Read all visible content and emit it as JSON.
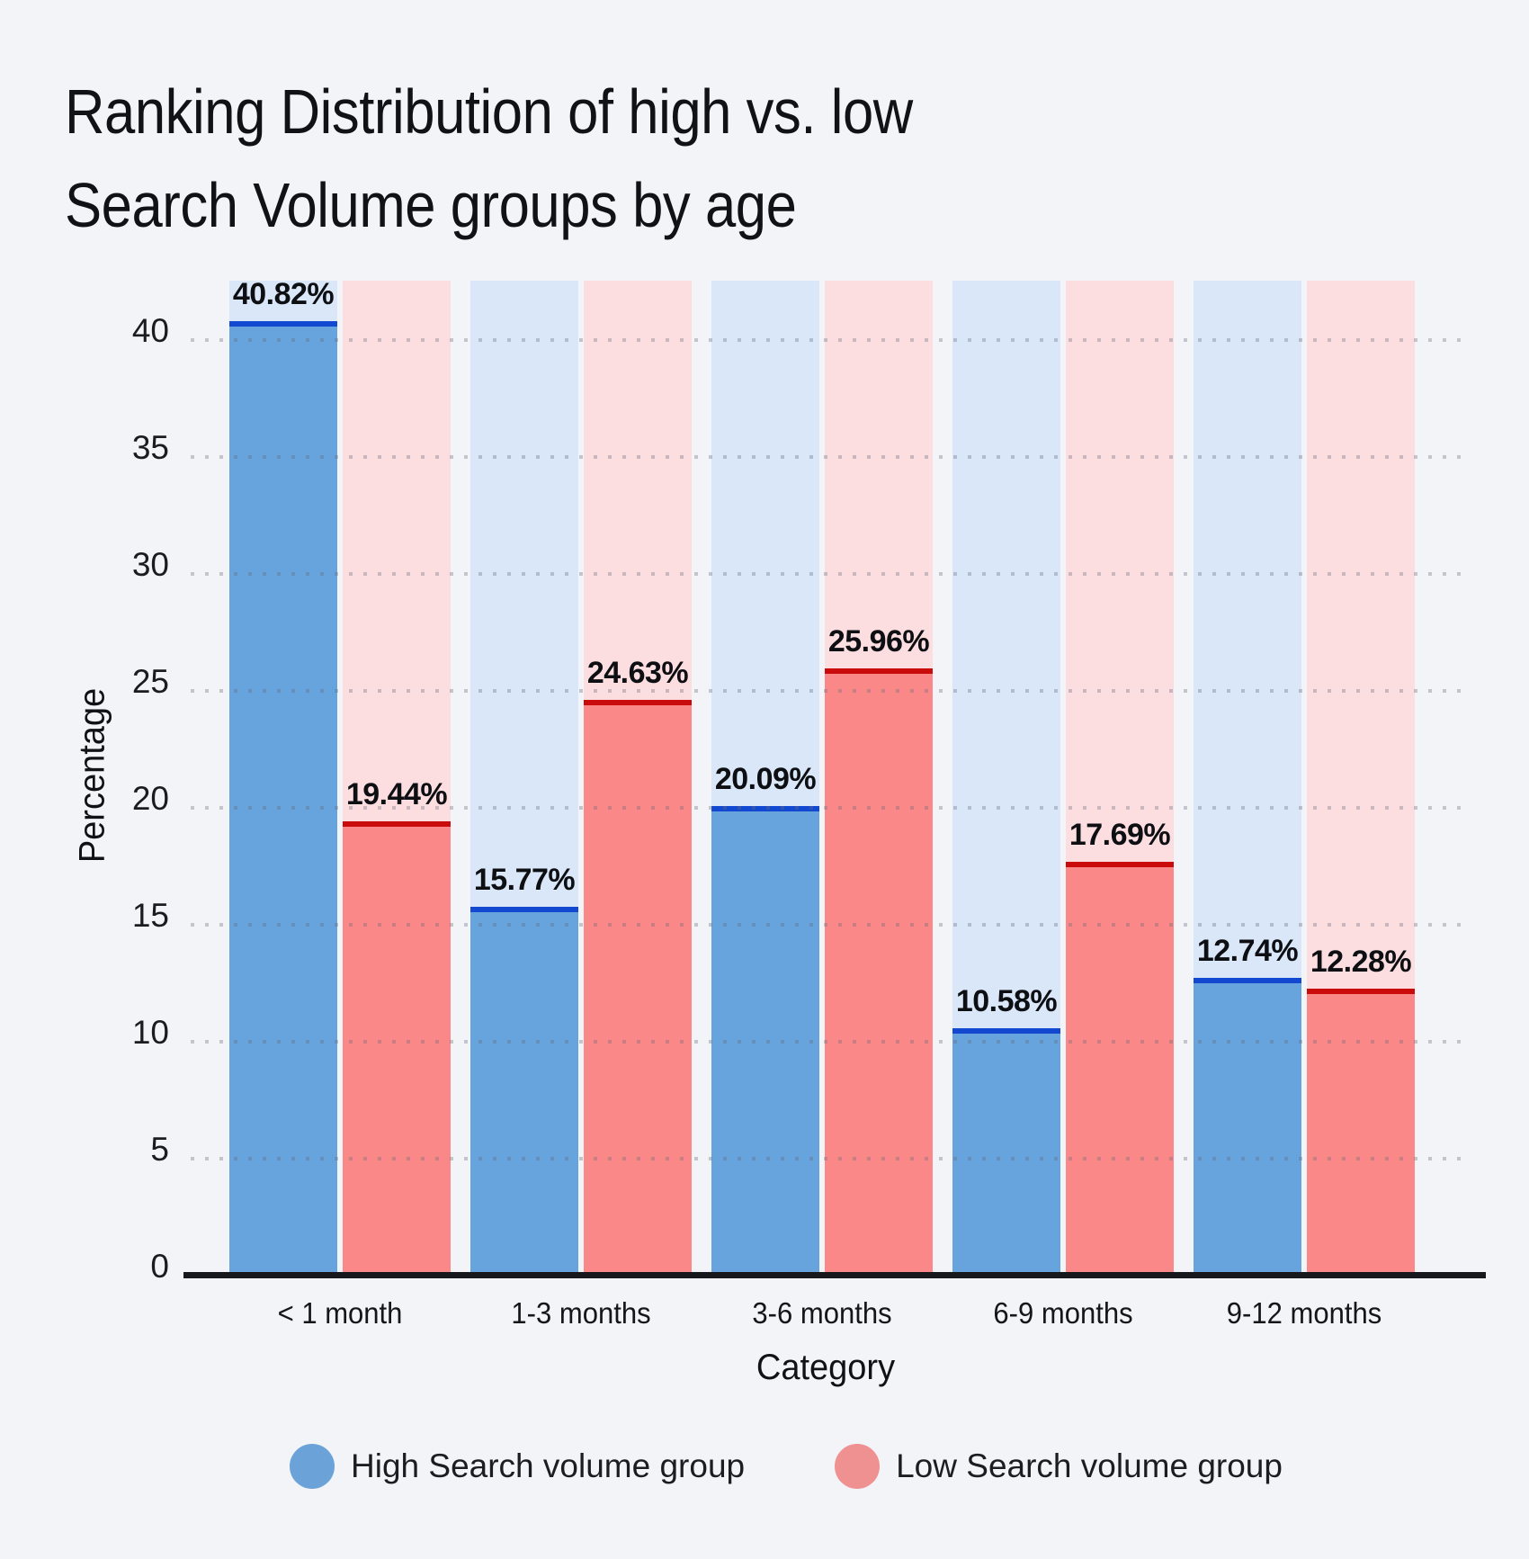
{
  "title_lines": [
    "Ranking Distribution of high vs. low",
    "Search Volume groups by age"
  ],
  "colors": {
    "page_bg": "#f2f4f7",
    "axis_line": "#17181c",
    "grid_dot_gray": "#c9ccd1",
    "text": "#16181d"
  },
  "chart_data": {
    "type": "bar",
    "title": "Ranking Distribution of high vs. low Search Volume groups by age",
    "categories": [
      "< 1 month",
      "1-3 months",
      "3-6 months",
      "6-9 months",
      "9-12 months"
    ],
    "series": [
      {
        "name": "High Search volume group",
        "values": [
          40.82,
          15.77,
          20.09,
          10.58,
          12.74
        ],
        "bar_color": "#67a3dc",
        "edge_color": "#1348d0",
        "column_bg_color": "#d9e7f8",
        "legend_color": "#6ba3d9"
      },
      {
        "name": "Low Search volume group",
        "values": [
          19.44,
          24.63,
          25.96,
          17.69,
          12.28
        ],
        "bar_color": "#fb8888",
        "edge_color": "#ca0b0b",
        "column_bg_color": "#fcdee1",
        "legend_color": "#ef9091"
      }
    ],
    "value_labels": [
      [
        "40.82%",
        "15.77%",
        "20.09%",
        "10.58%",
        "12.74%"
      ],
      [
        "19.44%",
        "24.63%",
        "25.96%",
        "17.69%",
        "12.28%"
      ]
    ],
    "xlabel": "Category",
    "ylabel": "Percentage",
    "yticks": [
      0,
      5,
      10,
      15,
      20,
      25,
      30,
      35,
      40
    ],
    "ylim": [
      0,
      42.5
    ],
    "grid": "horizontal dotted",
    "legend_position": "bottom",
    "bar_label_format": "{value}%"
  }
}
